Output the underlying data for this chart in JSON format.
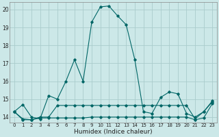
{
  "xlabel": "Humidex (Indice chaleur)",
  "background_color": "#cce8e8",
  "grid_color": "#aacccc",
  "line_color": "#006666",
  "xlim": [
    -0.5,
    23.5
  ],
  "ylim": [
    13.7,
    20.4
  ],
  "yticks": [
    14,
    15,
    16,
    17,
    18,
    19,
    20
  ],
  "xticks": [
    0,
    1,
    2,
    3,
    4,
    5,
    6,
    7,
    8,
    9,
    10,
    11,
    12,
    13,
    14,
    15,
    16,
    17,
    18,
    19,
    20,
    21,
    22,
    23
  ],
  "curve1_x": [
    0,
    1,
    2,
    3,
    4,
    5,
    6,
    7,
    8,
    9,
    10,
    11,
    12,
    13,
    14,
    15,
    16,
    17,
    18,
    19,
    20,
    21,
    22,
    23
  ],
  "curve1_y": [
    14.3,
    14.7,
    14.0,
    13.9,
    15.2,
    15.0,
    16.0,
    17.2,
    16.0,
    19.3,
    20.15,
    20.2,
    19.65,
    19.15,
    17.2,
    14.3,
    14.2,
    15.1,
    15.4,
    15.3,
    14.2,
    14.0,
    14.3,
    14.9
  ],
  "curve2_x": [
    0,
    1,
    2,
    3,
    4,
    5,
    6,
    7,
    8,
    9,
    10,
    11,
    12,
    13,
    14,
    15,
    16,
    17,
    18,
    19,
    20,
    21,
    22,
    23
  ],
  "curve2_y": [
    14.3,
    13.9,
    13.85,
    14.0,
    14.0,
    14.65,
    14.65,
    14.65,
    14.65,
    14.65,
    14.65,
    14.65,
    14.65,
    14.65,
    14.65,
    14.65,
    14.65,
    14.65,
    14.65,
    14.65,
    14.65,
    13.9,
    14.3,
    14.85
  ],
  "curve3_x": [
    0,
    1,
    2,
    3,
    4,
    5,
    6,
    7,
    8,
    9,
    10,
    11,
    12,
    13,
    14,
    15,
    16,
    17,
    18,
    19,
    20,
    21,
    22,
    23
  ],
  "curve3_y": [
    14.3,
    13.85,
    13.85,
    13.95,
    13.95,
    13.95,
    13.95,
    13.95,
    13.95,
    14.0,
    14.0,
    14.0,
    14.0,
    14.0,
    14.0,
    14.0,
    14.0,
    14.0,
    14.0,
    14.0,
    14.0,
    13.85,
    13.95,
    14.75
  ]
}
